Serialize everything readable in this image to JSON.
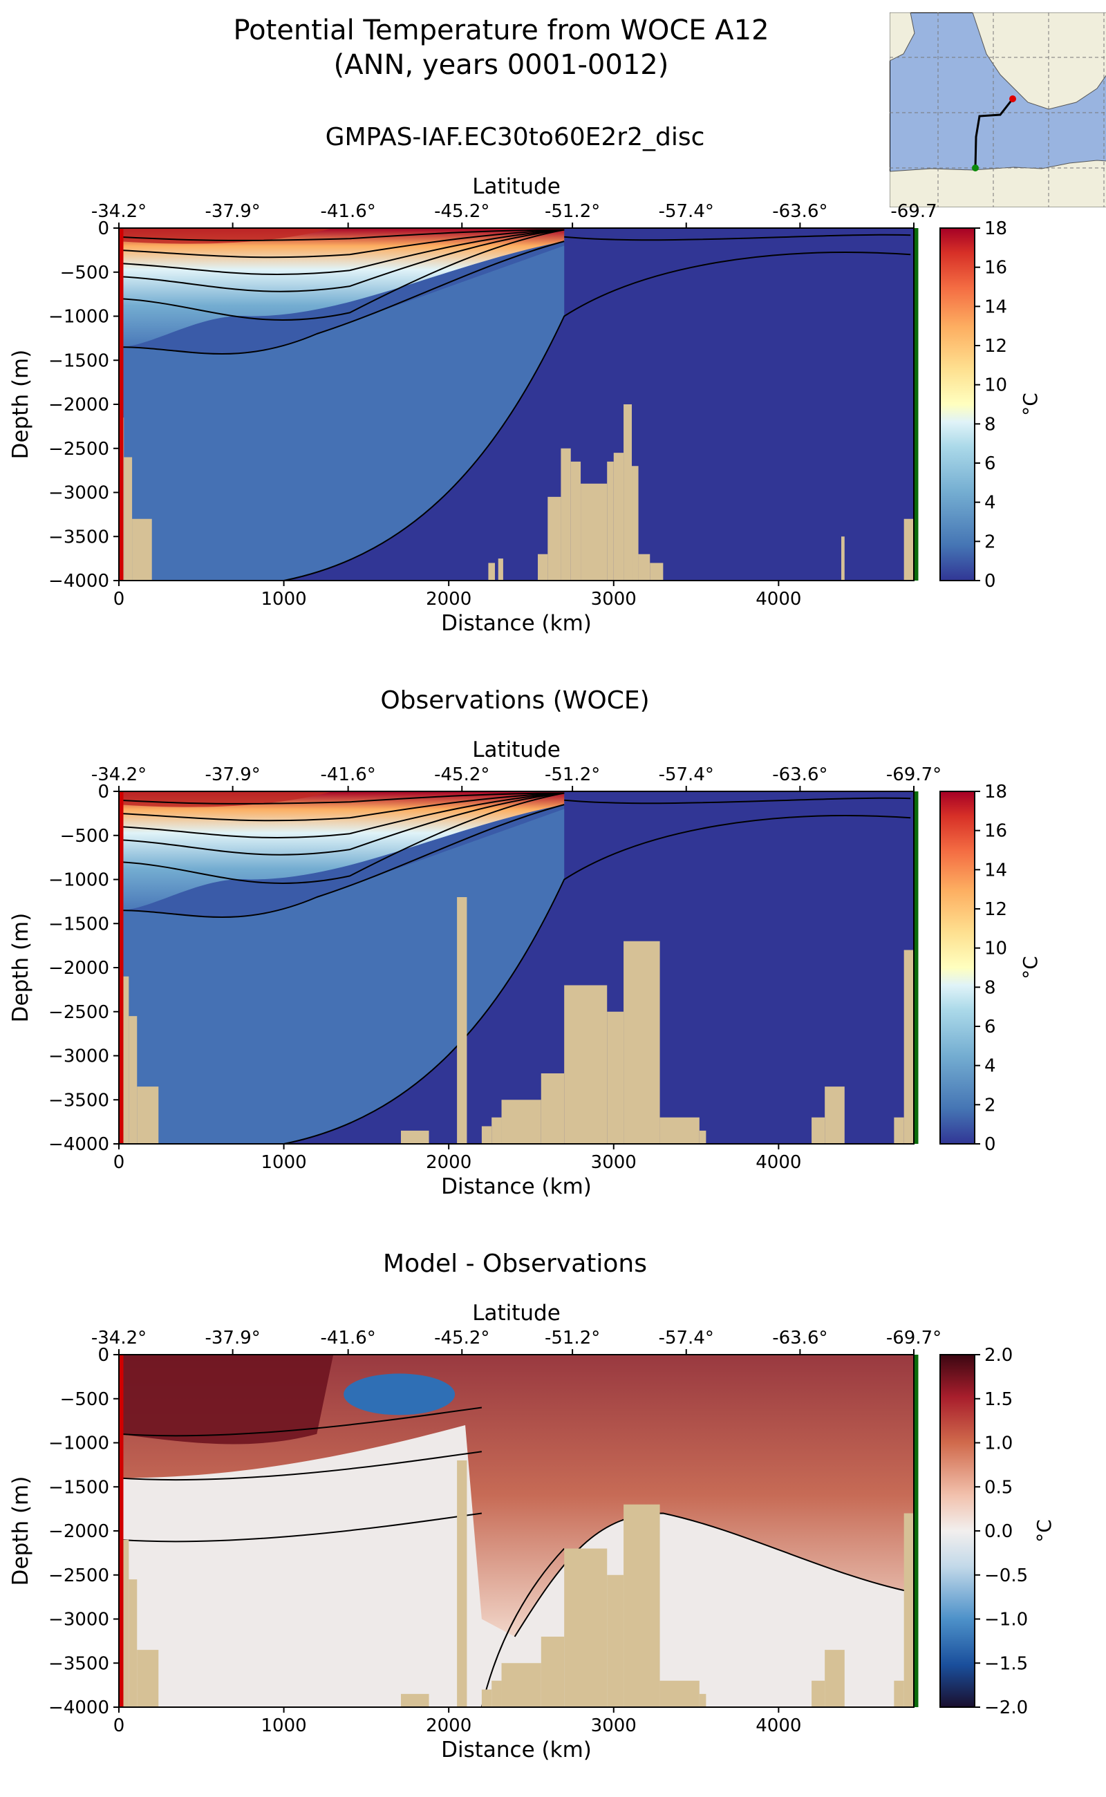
{
  "figure": {
    "title_line1": "Potential Temperature from WOCE A12",
    "title_line2": "(ANN, years 0001-0012)",
    "inset_map": {
      "description_colors": {
        "ocean": "#99b4e0",
        "land": "#f0eedc"
      }
    }
  },
  "chart_data": [
    {
      "type": "heatmap",
      "title": "GMPAS-IAF.EC30to60E2r2_disc",
      "xlabel": "Distance (km)",
      "ylabel": "Depth (m)",
      "top_xlabel": "Latitude",
      "xlim": [
        0,
        4820
      ],
      "ylim": [
        -4000,
        0
      ],
      "xticks": [
        0,
        1000,
        2000,
        3000,
        4000
      ],
      "yticks": [
        0,
        -500,
        -1000,
        -1500,
        -2000,
        -2500,
        -3000,
        -3500,
        -4000
      ],
      "top_ticks": [
        "-34.2°",
        "-37.9°",
        "-41.6°",
        "-45.2°",
        "-51.2°",
        "-57.4°",
        "-63.6°",
        "-69.7"
      ],
      "top_tick_positions_km": [
        0,
        690,
        1390,
        2080,
        2750,
        3440,
        4130,
        4820
      ],
      "colorbar": {
        "label": "°C",
        "range": [
          0,
          18
        ],
        "ticks": [
          0,
          2,
          4,
          6,
          8,
          10,
          12,
          14,
          16,
          18
        ],
        "colormap": "RdYlBu_r"
      }
    },
    {
      "type": "heatmap",
      "title": "Observations (WOCE)",
      "xlabel": "Distance (km)",
      "ylabel": "Depth (m)",
      "top_xlabel": "Latitude",
      "xlim": [
        0,
        4820
      ],
      "ylim": [
        -4000,
        0
      ],
      "xticks": [
        0,
        1000,
        2000,
        3000,
        4000
      ],
      "yticks": [
        0,
        -500,
        -1000,
        -1500,
        -2000,
        -2500,
        -3000,
        -3500,
        -4000
      ],
      "top_ticks": [
        "-34.2°",
        "-37.9°",
        "-41.6°",
        "-45.2°",
        "-51.2°",
        "-57.4°",
        "-63.6°",
        "-69.7°"
      ],
      "top_tick_positions_km": [
        0,
        690,
        1390,
        2080,
        2750,
        3440,
        4130,
        4820
      ],
      "colorbar": {
        "label": "°C",
        "range": [
          0,
          18
        ],
        "ticks": [
          0,
          2,
          4,
          6,
          8,
          10,
          12,
          14,
          16,
          18
        ],
        "colormap": "RdYlBu_r"
      }
    },
    {
      "type": "heatmap",
      "title": "Model - Observations",
      "xlabel": "Distance (km)",
      "ylabel": "Depth (m)",
      "top_xlabel": "Latitude",
      "xlim": [
        0,
        4820
      ],
      "ylim": [
        -4000,
        0
      ],
      "xticks": [
        0,
        1000,
        2000,
        3000,
        4000
      ],
      "yticks": [
        0,
        -500,
        -1000,
        -1500,
        -2000,
        -2500,
        -3000,
        -3500,
        -4000
      ],
      "top_ticks": [
        "-34.2°",
        "-37.9°",
        "-41.6°",
        "-45.2°",
        "-51.2°",
        "-57.4°",
        "-63.6°",
        "-69.7°"
      ],
      "top_tick_positions_km": [
        0,
        690,
        1390,
        2080,
        2750,
        3440,
        4130,
        4820
      ],
      "colorbar": {
        "label": "°C",
        "range": [
          -2.0,
          2.0
        ],
        "ticks": [
          "2.0",
          "1.5",
          "1.0",
          "0.5",
          "0.0",
          "−0.5",
          "−1.0",
          "−1.5",
          "−2.0"
        ],
        "colormap": "RdBu_r"
      }
    }
  ]
}
